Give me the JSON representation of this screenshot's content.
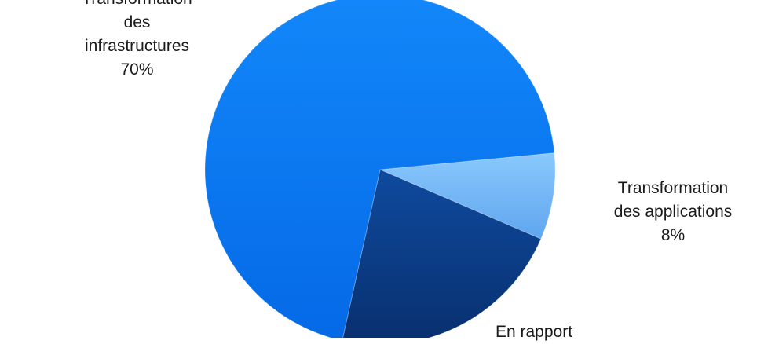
{
  "chart_data": {
    "type": "pie",
    "slices": [
      {
        "label_lines": [
          "Transformation",
          "des",
          "infrastructures"
        ],
        "value": 70,
        "value_label": "70%",
        "color": "#0A7AF7"
      },
      {
        "label_lines": [
          "Transformation",
          "des applications"
        ],
        "value": 8,
        "value_label": "8%",
        "color": "#7CC0FC"
      },
      {
        "label_lines": [
          "En rapport"
        ],
        "value": 22,
        "value_label": "",
        "color": "#0C3F8C"
      }
    ],
    "legend": "none",
    "labels": "outside-slices"
  }
}
